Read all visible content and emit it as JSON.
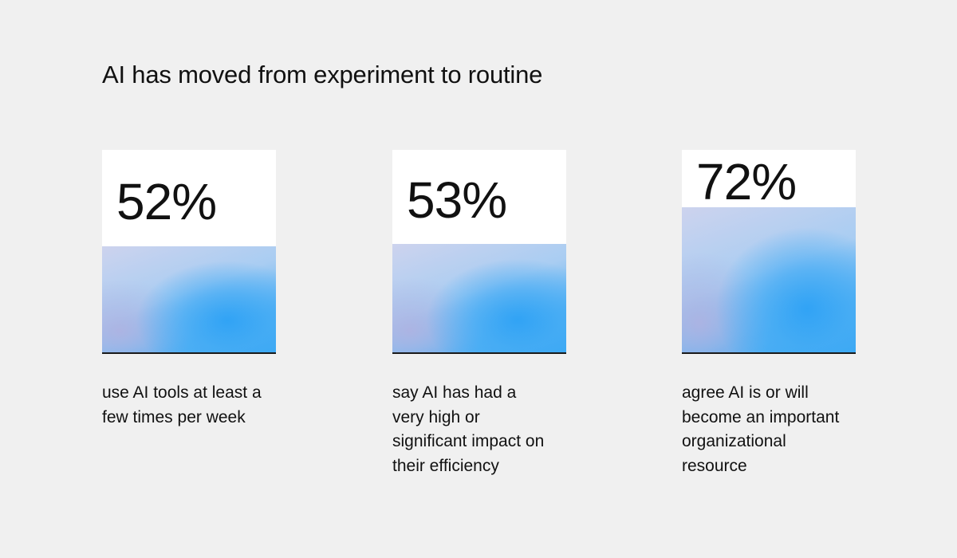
{
  "chart_data": {
    "type": "bar",
    "title": "AI has moved from experiment to routine",
    "ylim": [
      0,
      100
    ],
    "unit": "%",
    "categories": [
      "use AI tools at least a few times per week",
      "say AI has had a very high or significant impact on their efficiency",
      "agree AI is or will become an important organizational resource"
    ],
    "values": [
      52,
      53,
      72
    ],
    "value_labels": [
      "52%",
      "53%",
      "72%"
    ],
    "colors": {
      "background": "#f0f0f0",
      "box": "#ffffff",
      "fill_primary": "#39a8f4",
      "fill_secondary": "#c5c8ea",
      "baseline": "#1a1a1a"
    }
  }
}
